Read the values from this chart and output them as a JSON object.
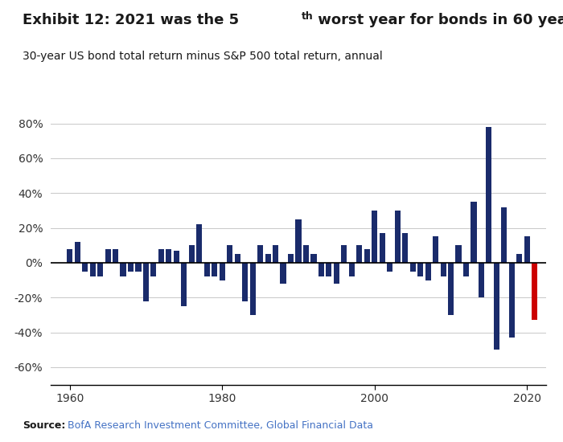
{
  "years": [
    1960,
    1961,
    1962,
    1963,
    1964,
    1965,
    1966,
    1967,
    1968,
    1969,
    1970,
    1971,
    1972,
    1973,
    1974,
    1975,
    1976,
    1977,
    1978,
    1979,
    1980,
    1981,
    1982,
    1983,
    1984,
    1985,
    1986,
    1987,
    1988,
    1989,
    1990,
    1991,
    1992,
    1993,
    1994,
    1995,
    1996,
    1997,
    1998,
    1999,
    2000,
    2001,
    2002,
    2003,
    2004,
    2005,
    2006,
    2007,
    2008,
    2009,
    2010,
    2011,
    2012,
    2013,
    2014,
    2015,
    2016,
    2017,
    2018,
    2019,
    2020,
    2021
  ],
  "values": [
    8,
    12,
    -5,
    -8,
    -8,
    8,
    8,
    -8,
    -5,
    -5,
    -22,
    -8,
    8,
    8,
    7,
    -25,
    10,
    22,
    -8,
    -8,
    -10,
    10,
    5,
    -22,
    -30,
    10,
    5,
    10,
    -12,
    5,
    25,
    10,
    5,
    -8,
    -8,
    -12,
    10,
    -8,
    10,
    8,
    30,
    17,
    -5,
    30,
    17,
    -5,
    -8,
    -10,
    15,
    -8,
    -30,
    10,
    -8,
    35,
    -20,
    78,
    -50,
    32,
    -43,
    5,
    15,
    -33
  ],
  "bar_color_default": "#1a2b6b",
  "bar_color_highlight": "#cc0000",
  "highlight_year": 2021,
  "subtitle": "30-year US bond total return minus S&P 500 total return, annual",
  "ylim": [
    -70,
    90
  ],
  "yticks": [
    -60,
    -40,
    -20,
    0,
    20,
    40,
    60,
    80
  ],
  "background_color": "#ffffff",
  "grid_color": "#c8c8c8",
  "source_bold": "Source:",
  "source_rest": " BofA Research Investment Committee, Global Financial Data"
}
